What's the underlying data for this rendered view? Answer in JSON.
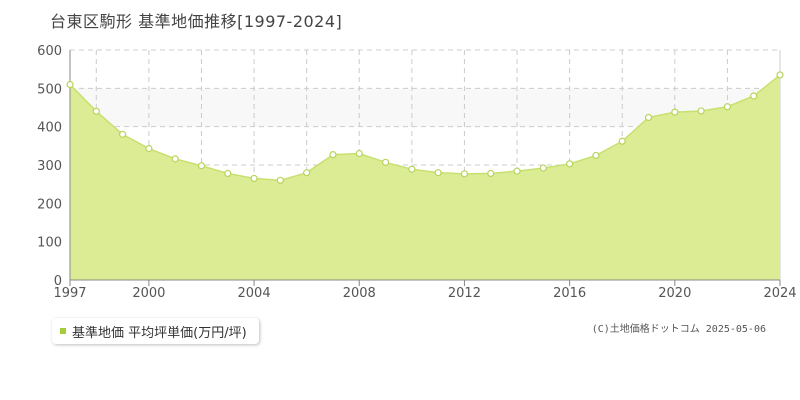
{
  "chart_data": {
    "type": "area",
    "title": "台東区駒形 基準地価推移[1997-2024]",
    "x": [
      1997,
      1998,
      1999,
      2000,
      2001,
      2002,
      2003,
      2004,
      2005,
      2006,
      2007,
      2008,
      2009,
      2010,
      2011,
      2012,
      2013,
      2014,
      2015,
      2016,
      2017,
      2018,
      2019,
      2020,
      2021,
      2022,
      2023,
      2024
    ],
    "series": [
      {
        "name": "基準地価 平均坪単価(万円/坪)",
        "values": [
          510,
          440,
          380,
          343,
          316,
          298,
          278,
          265,
          260,
          280,
          327,
          330,
          307,
          289,
          280,
          277,
          278,
          284,
          292,
          303,
          325,
          362,
          424,
          438,
          441,
          452,
          480,
          535
        ]
      }
    ],
    "xticks": [
      "1997",
      "2000",
      "2004",
      "2008",
      "2012",
      "2016",
      "2020",
      "2024"
    ],
    "yticks": [
      "0",
      "100",
      "200",
      "300",
      "400",
      "500",
      "600"
    ],
    "ylim": [
      0,
      600
    ],
    "xlim": [
      1997,
      2024
    ],
    "band": [
      400,
      500
    ],
    "grid": true,
    "legend_position": "bottom-left"
  },
  "legend": {
    "label": "基準地価 平均坪単価(万円/坪)"
  },
  "copyright": "(C)土地価格ドットコム 2025-05-06",
  "colors": {
    "fill": "#dbec94",
    "line": "#c8e070",
    "point_stroke": "#b8d45a",
    "legend_swatch": "#a6cc3c",
    "band": "#f8f8f8",
    "grid": "#cccccc",
    "axis": "#888888"
  }
}
